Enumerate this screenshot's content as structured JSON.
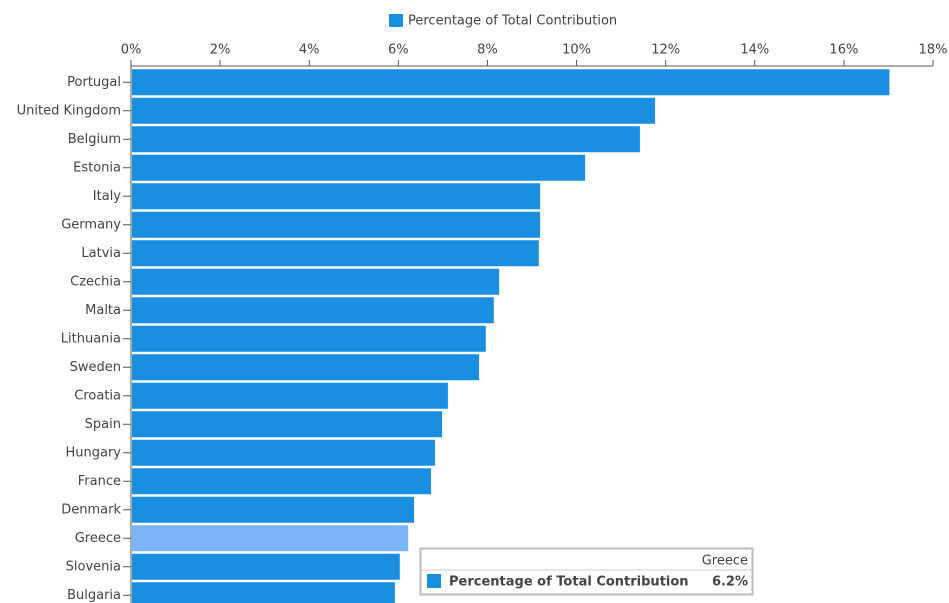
{
  "chart_data": {
    "type": "bar",
    "orientation": "horizontal",
    "categories": [
      "Portugal",
      "United Kingdom",
      "Belgium",
      "Estonia",
      "Italy",
      "Germany",
      "Latvia",
      "Czechia",
      "Malta",
      "Lithuania",
      "Sweden",
      "Croatia",
      "Spain",
      "Hungary",
      "France",
      "Denmark",
      "Greece",
      "Slovenia",
      "Bulgaria"
    ],
    "series": [
      {
        "name": "Percentage of Total Contribution",
        "color": "#1a8ee0",
        "values": [
          17.0,
          11.74,
          11.4,
          10.17,
          9.16,
          9.16,
          9.13,
          8.24,
          8.12,
          7.94,
          7.79,
          7.09,
          6.96,
          6.8,
          6.71,
          6.33,
          6.2,
          6.01,
          5.9
        ]
      }
    ],
    "xlim": [
      0,
      18
    ],
    "xticks": [
      {
        "value": 0,
        "label": "0%"
      },
      {
        "value": 2,
        "label": "2%"
      },
      {
        "value": 4,
        "label": "4%"
      },
      {
        "value": 6,
        "label": "6%"
      },
      {
        "value": 8,
        "label": "8%"
      },
      {
        "value": 10,
        "label": "10%"
      },
      {
        "value": 12,
        "label": "12%"
      },
      {
        "value": 14,
        "label": "14%"
      },
      {
        "value": 16,
        "label": "16%"
      },
      {
        "value": 18,
        "label": "18%"
      }
    ],
    "legend": "top",
    "highlight_color": "#7cb5f5",
    "tooltip": {
      "category": "Greece",
      "value_label": "6.2%"
    }
  }
}
